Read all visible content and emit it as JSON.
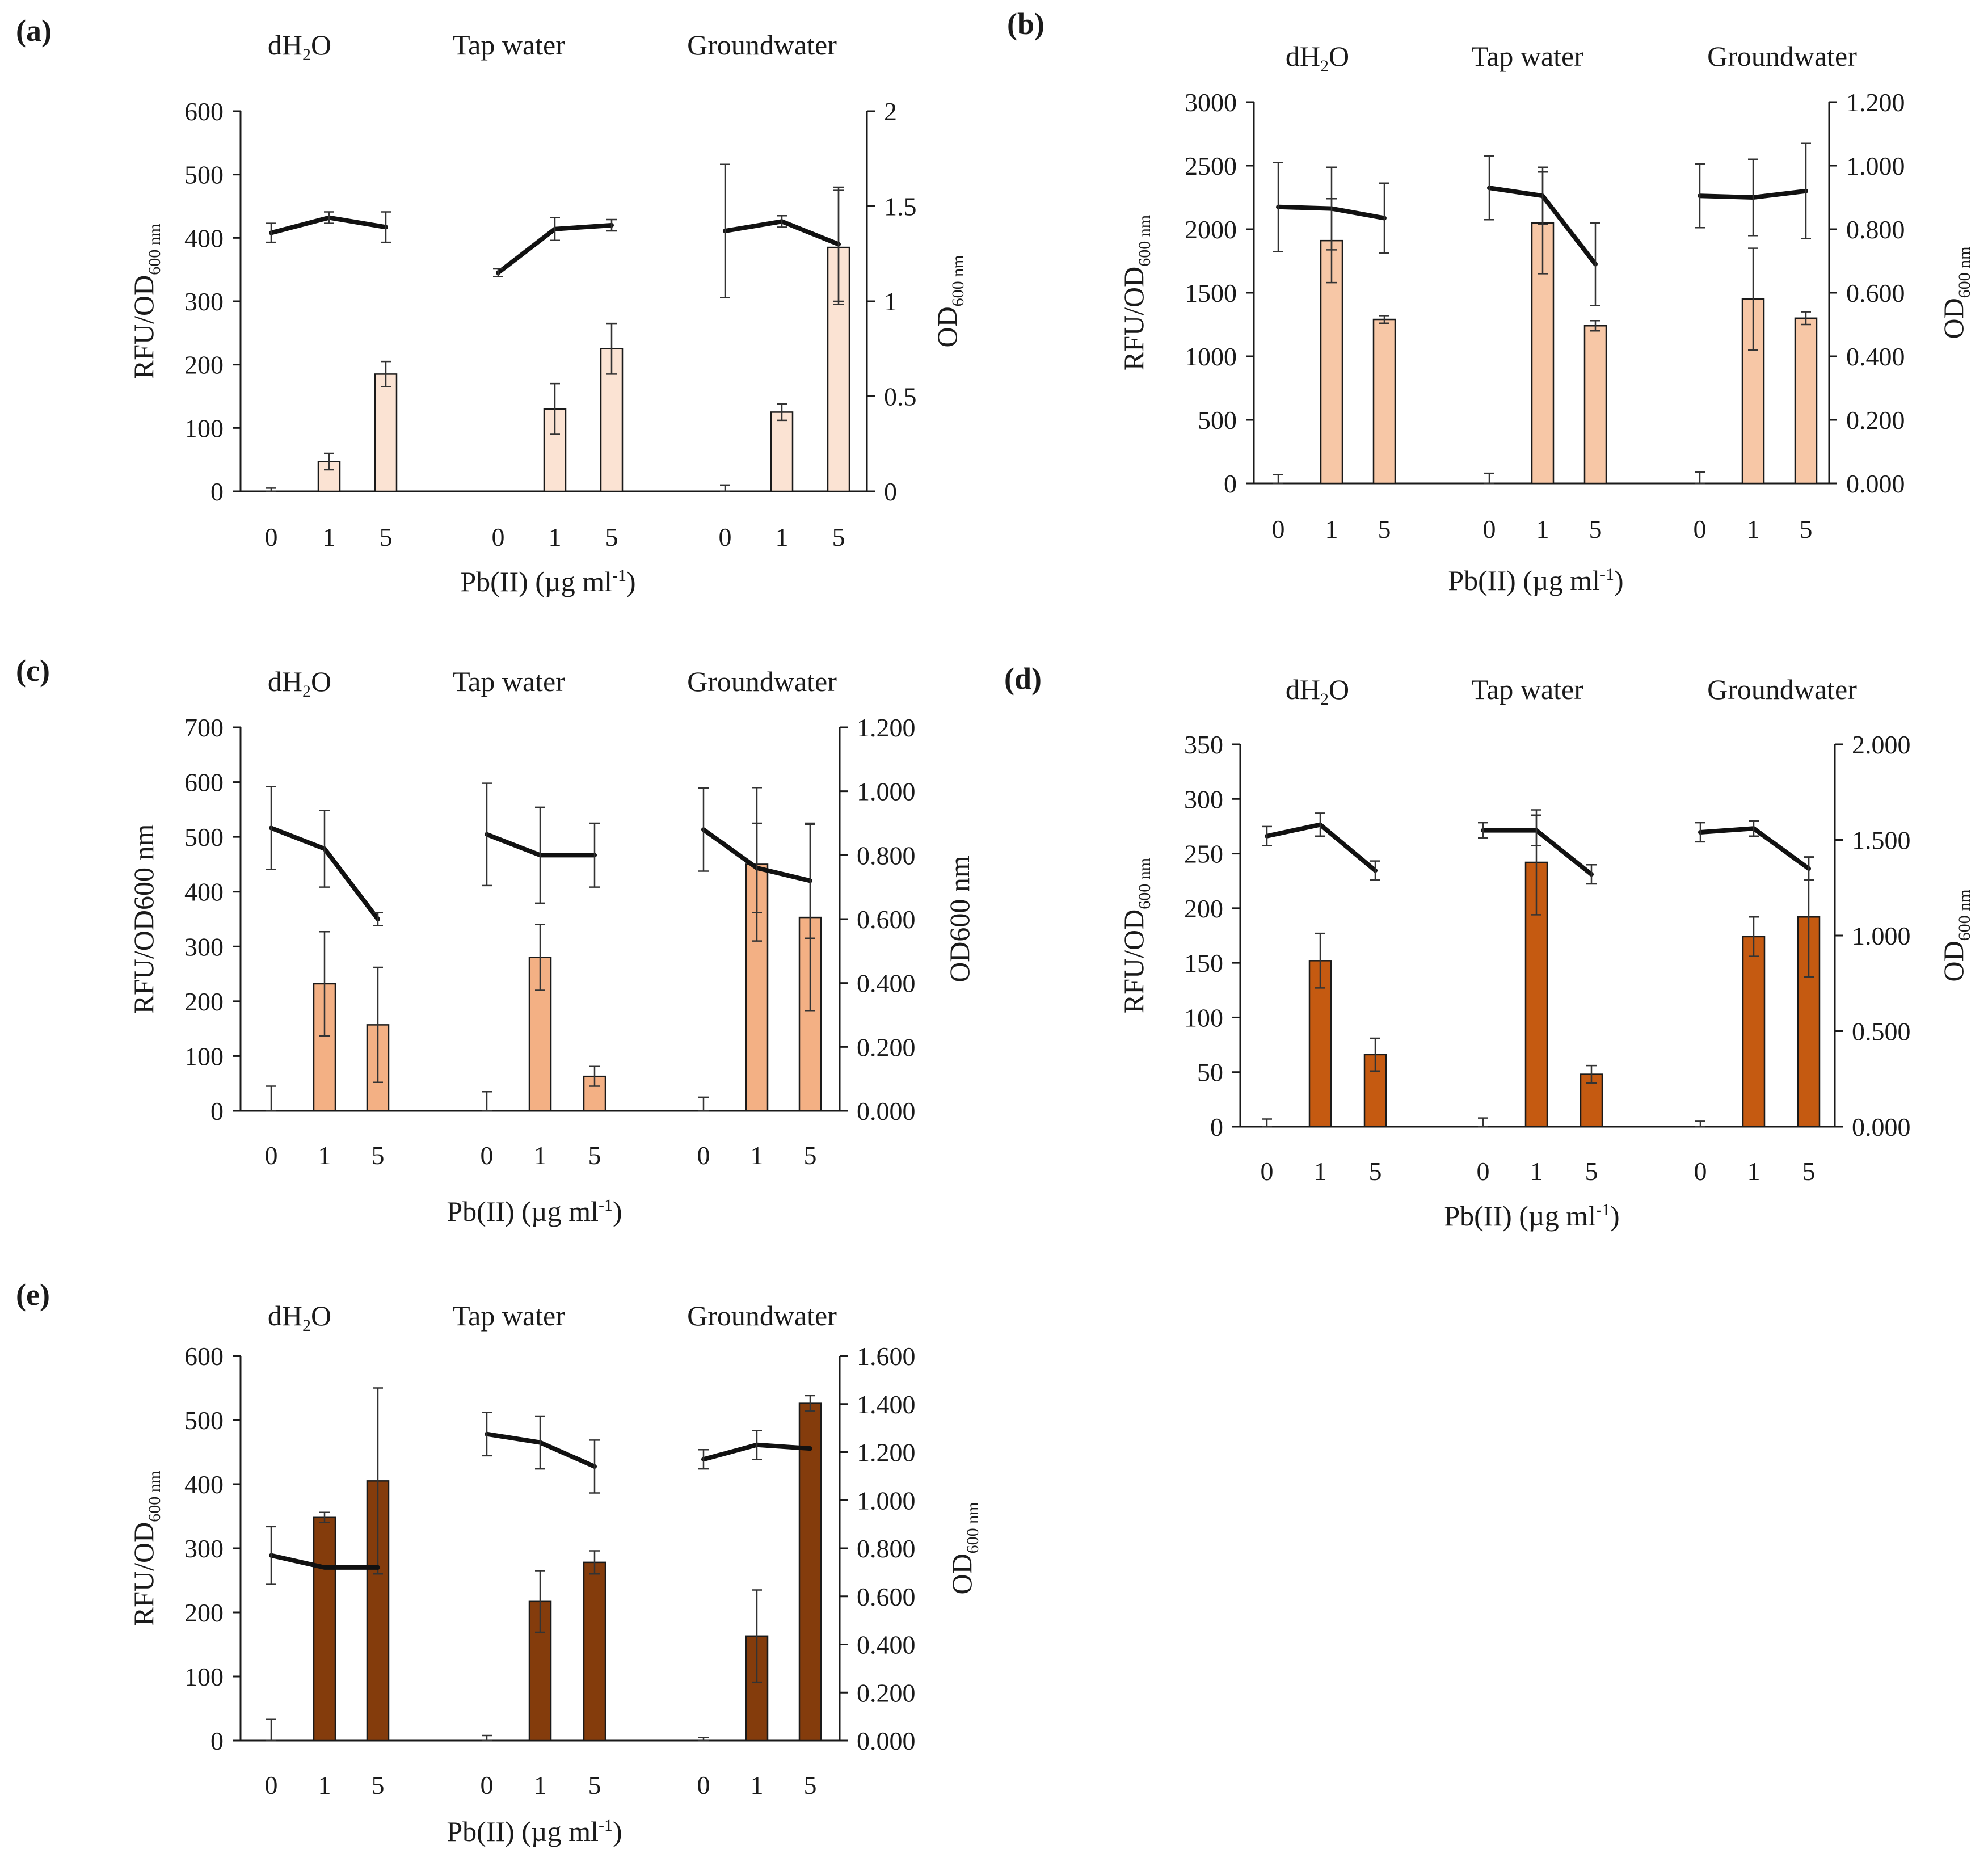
{
  "figure": {
    "colors": {
      "line": "#111111",
      "axis": "#1a1a1a"
    }
  },
  "chart_data": [
    {
      "id": "a",
      "panel_label": "(a)",
      "type": "bar",
      "bar_color": "#fbe3d3",
      "groups": [
        {
          "label": "dH",
          "label_sub": "2",
          "label_tail": "O"
        },
        {
          "label": "Tap water",
          "label_sub": "",
          "label_tail": ""
        },
        {
          "label": "Groundwater",
          "label_sub": "",
          "label_tail": ""
        }
      ],
      "categories": [
        "0",
        "1",
        "5"
      ],
      "xlabel_main": "Pb(II)  (µg ml",
      "xlabel_sup": "-1",
      "xlabel_end": ")",
      "ylabel_left_main": "RFU/OD",
      "ylabel_left_sub": "600 nm",
      "ylabel_right_main": "OD",
      "ylabel_right_sub": "600 nm",
      "yleft_ticks": [
        "0",
        "100",
        "200",
        "300",
        "400",
        "500",
        "600"
      ],
      "yleft_lim": [
        0,
        600
      ],
      "yright_ticks": [
        "0",
        "0.5",
        "1",
        "1.5",
        "2"
      ],
      "yright_lim": [
        0,
        2
      ],
      "bars": [
        [
          0,
          47,
          185
        ],
        [
          0,
          130,
          225
        ],
        [
          0,
          125,
          385
        ]
      ],
      "bar_err": [
        [
          5,
          13,
          20
        ],
        [
          0,
          40,
          40
        ],
        [
          10,
          13,
          90
        ]
      ],
      "line": [
        [
          1.36,
          1.44,
          1.39
        ],
        [
          1.15,
          1.38,
          1.4
        ],
        [
          1.37,
          1.42,
          1.3
        ]
      ],
      "line_err": [
        [
          0.05,
          0.03,
          0.08
        ],
        [
          0.02,
          0.06,
          0.03
        ],
        [
          0.35,
          0.03,
          0.3
        ]
      ]
    },
    {
      "id": "b",
      "panel_label": "(b)",
      "type": "bar",
      "bar_color": "#f7c7a6",
      "groups": [
        {
          "label": "dH",
          "label_sub": "2",
          "label_tail": "O"
        },
        {
          "label": "Tap water",
          "label_sub": "",
          "label_tail": ""
        },
        {
          "label": "Groundwater",
          "label_sub": "",
          "label_tail": ""
        }
      ],
      "categories": [
        "0",
        "1",
        "5"
      ],
      "xlabel_main": "Pb(II)  (µg ml",
      "xlabel_sup": "-1",
      "xlabel_end": ")",
      "ylabel_left_main": "RFU/OD",
      "ylabel_left_sub": "600 nm",
      "ylabel_right_main": "OD",
      "ylabel_right_sub": "600 nm",
      "yleft_ticks": [
        "0",
        "500",
        "1000",
        "1500",
        "2000",
        "2500",
        "3000"
      ],
      "yleft_lim": [
        0,
        3000
      ],
      "yright_ticks": [
        "0.000",
        "0.200",
        "0.400",
        "0.600",
        "0.800",
        "1.000",
        "1.200"
      ],
      "yright_lim": [
        0,
        1.2
      ],
      "bars": [
        [
          0,
          1910,
          1290
        ],
        [
          0,
          2050,
          1240
        ],
        [
          0,
          1450,
          1300
        ]
      ],
      "bar_err": [
        [
          70,
          330,
          30
        ],
        [
          80,
          400,
          40
        ],
        [
          90,
          400,
          50
        ]
      ],
      "line": [
        [
          0.87,
          0.865,
          0.835
        ],
        [
          0.93,
          0.905,
          0.69
        ],
        [
          0.905,
          0.9,
          0.92
        ]
      ],
      "line_err": [
        [
          0.14,
          0.13,
          0.11
        ],
        [
          0.1,
          0.09,
          0.13
        ],
        [
          0.1,
          0.12,
          0.15
        ]
      ]
    },
    {
      "id": "c",
      "panel_label": "(c)",
      "type": "bar",
      "bar_color": "#f3b084",
      "groups": [
        {
          "label": "dH",
          "label_sub": "2",
          "label_tail": "O"
        },
        {
          "label": "Tap water",
          "label_sub": "",
          "label_tail": ""
        },
        {
          "label": "Groundwater",
          "label_sub": "",
          "label_tail": ""
        }
      ],
      "categories": [
        "0",
        "1",
        "5"
      ],
      "xlabel_main": "Pb(II)  (µg ml",
      "xlabel_sup": "-1",
      "xlabel_end": ")",
      "ylabel_left_main": "RFU/OD600 nm",
      "ylabel_left_sub": "",
      "ylabel_right_main": "OD600 nm",
      "ylabel_right_sub": "",
      "yleft_ticks": [
        "0",
        "100",
        "200",
        "300",
        "400",
        "500",
        "600",
        "700"
      ],
      "yleft_lim": [
        0,
        700
      ],
      "yright_ticks": [
        "0.000",
        "0.200",
        "0.400",
        "0.600",
        "0.800",
        "1.000",
        "1.200"
      ],
      "yright_lim": [
        0,
        1.2
      ],
      "bars": [
        [
          0,
          232,
          157
        ],
        [
          0,
          280,
          63
        ],
        [
          0,
          450,
          353
        ]
      ],
      "bar_err": [
        [
          45,
          95,
          105
        ],
        [
          35,
          60,
          18
        ],
        [
          25,
          140,
          170
        ]
      ],
      "line": [
        [
          0.885,
          0.82,
          0.6
        ],
        [
          0.865,
          0.8,
          0.8
        ],
        [
          0.88,
          0.76,
          0.72
        ]
      ],
      "line_err": [
        [
          0.13,
          0.12,
          0.02
        ],
        [
          0.16,
          0.15,
          0.1
        ],
        [
          0.13,
          0.14,
          0.18
        ]
      ]
    },
    {
      "id": "d",
      "panel_label": "(d)",
      "type": "bar",
      "bar_color": "#c55a11",
      "groups": [
        {
          "label": "dH",
          "label_sub": "2",
          "label_tail": "O"
        },
        {
          "label": "Tap water",
          "label_sub": "",
          "label_tail": ""
        },
        {
          "label": "Groundwater",
          "label_sub": "",
          "label_tail": ""
        }
      ],
      "categories": [
        "0",
        "1",
        "5"
      ],
      "xlabel_main": "Pb(II)  (µg ml",
      "xlabel_sup": "-1",
      "xlabel_end": ")",
      "ylabel_left_main": "RFU/OD",
      "ylabel_left_sub": "600 nm",
      "ylabel_right_main": "OD",
      "ylabel_right_sub": "600 nm",
      "yleft_ticks": [
        "0",
        "50",
        "100",
        "150",
        "200",
        "250",
        "300",
        "350"
      ],
      "yleft_lim": [
        0,
        350
      ],
      "yright_ticks": [
        "0.000",
        "0.500",
        "1.000",
        "1.500",
        "2.000"
      ],
      "yright_lim": [
        0,
        2
      ],
      "bars": [
        [
          0,
          152,
          66
        ],
        [
          0,
          242,
          48
        ],
        [
          0,
          174,
          192
        ]
      ],
      "bar_err": [
        [
          7,
          25,
          15
        ],
        [
          8,
          48,
          8
        ],
        [
          5,
          18,
          55
        ]
      ],
      "line": [
        [
          1.52,
          1.58,
          1.34
        ],
        [
          1.55,
          1.55,
          1.32
        ],
        [
          1.54,
          1.56,
          1.35
        ]
      ],
      "line_err": [
        [
          0.05,
          0.06,
          0.05
        ],
        [
          0.04,
          0.08,
          0.05
        ],
        [
          0.05,
          0.04,
          0.06
        ]
      ]
    },
    {
      "id": "e",
      "panel_label": "(e)",
      "type": "bar",
      "bar_color": "#843c0c",
      "groups": [
        {
          "label": "dH",
          "label_sub": "2",
          "label_tail": "O"
        },
        {
          "label": "Tap water",
          "label_sub": "",
          "label_tail": ""
        },
        {
          "label": "Groundwater",
          "label_sub": "",
          "label_tail": ""
        }
      ],
      "categories": [
        "0",
        "1",
        "5"
      ],
      "xlabel_main": "Pb(II)  (µg ml",
      "xlabel_sup": "-1",
      "xlabel_end": ")",
      "ylabel_left_main": "RFU/OD",
      "ylabel_left_sub": "600 nm",
      "ylabel_right_main": "OD",
      "ylabel_right_sub": "600 nm",
      "yleft_ticks": [
        "0",
        "100",
        "200",
        "300",
        "400",
        "500",
        "600"
      ],
      "yleft_lim": [
        0,
        600
      ],
      "yright_ticks": [
        "0.000",
        "0.200",
        "0.400",
        "0.600",
        "0.800",
        "1.000",
        "1.200",
        "1.400",
        "1.600"
      ],
      "yright_lim": [
        0,
        1.6
      ],
      "bars": [
        [
          0,
          348,
          405
        ],
        [
          0,
          217,
          278
        ],
        [
          0,
          163,
          526
        ]
      ],
      "bar_err": [
        [
          33,
          8,
          145
        ],
        [
          8,
          48,
          18
        ],
        [
          5,
          72,
          12
        ]
      ],
      "line": [
        [
          0.77,
          0.72,
          0.72
        ],
        [
          1.275,
          1.24,
          1.14
        ],
        [
          1.17,
          1.23,
          1.215
        ]
      ],
      "line_err": [
        [
          0.12,
          0.0,
          0.0
        ],
        [
          0.09,
          0.11,
          0.11
        ],
        [
          0.04,
          0.06,
          0.0
        ]
      ]
    }
  ]
}
